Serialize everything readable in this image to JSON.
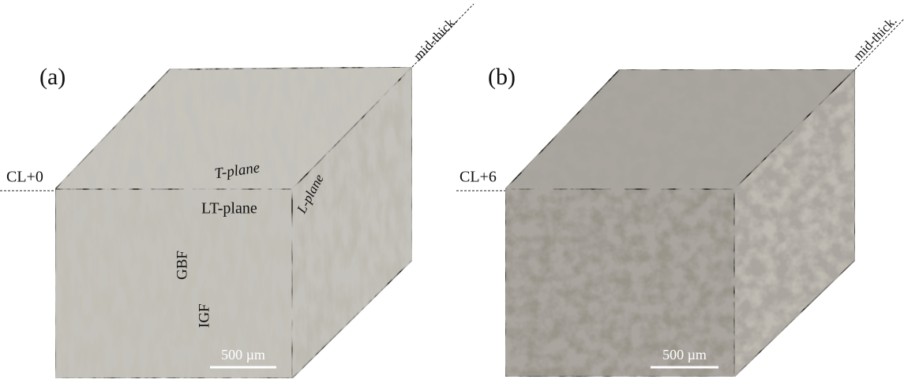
{
  "panels": [
    {
      "label": "(a)",
      "position_label": "CL+0",
      "thickness_label": "mid-thick.",
      "plane_labels": {
        "top": "T-plane",
        "side": "L-plane",
        "front": "LT-plane"
      },
      "phase_labels": [
        "GBF",
        "IGF"
      ],
      "scale_bar": "500 µm"
    },
    {
      "label": "(b)",
      "position_label": "CL+6",
      "thickness_label": "mid-thick.",
      "scale_bar": "500 µm"
    }
  ]
}
